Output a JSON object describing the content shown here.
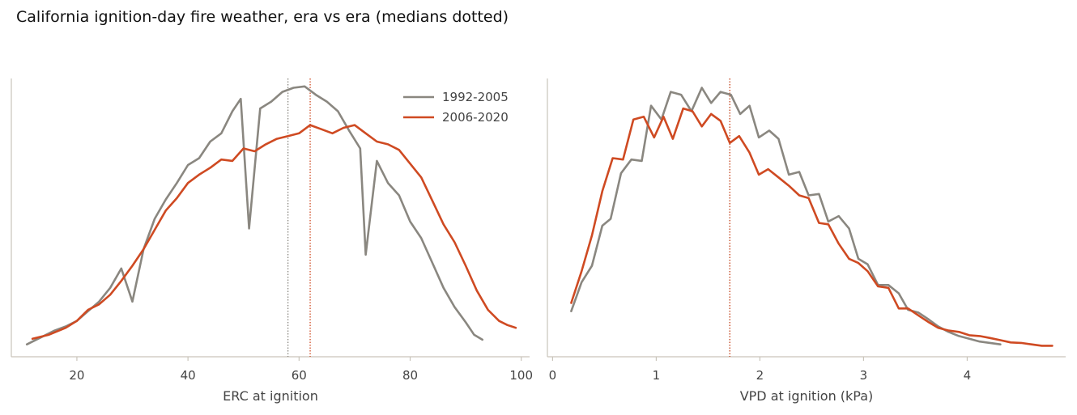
{
  "figure": {
    "title": "California ignition-day fire weather, era vs era (medians dotted)"
  },
  "colors": {
    "era1": "#8a8780",
    "era2": "#cf4a22",
    "axis": "#c9c4ba",
    "text": "#444444"
  },
  "legend": [
    {
      "label": "1992-2005",
      "color": "#8a8780"
    },
    {
      "label": "2006-2020",
      "color": "#cf4a22"
    }
  ],
  "chart_data": [
    {
      "type": "line",
      "xlabel": "ERC at ignition",
      "ylabel": "",
      "xlim": [
        8.2,
        101.5
      ],
      "ylim": [
        0,
        1.0
      ],
      "xticks": [
        20,
        40,
        60,
        80,
        100
      ],
      "y_ticks_shown": false,
      "legend_position": "top-right",
      "medians": [
        {
          "series": "1992-2005",
          "x": 58.0
        },
        {
          "series": "2006-2020",
          "x": 62.0
        }
      ],
      "series": [
        {
          "name": "1992-2005",
          "x": [
            11,
            14,
            16,
            18,
            20,
            22,
            24,
            26,
            28,
            30,
            32,
            34,
            36,
            38,
            40,
            42,
            44,
            46,
            48,
            49.5,
            51,
            53,
            55,
            57,
            59,
            61,
            63,
            65,
            67,
            69,
            71,
            72,
            74,
            76,
            78,
            80,
            82,
            84,
            86,
            88,
            90,
            91.5,
            93
          ],
          "y": [
            0.045,
            0.075,
            0.095,
            0.11,
            0.13,
            0.165,
            0.2,
            0.25,
            0.32,
            0.2,
            0.39,
            0.5,
            0.57,
            0.63,
            0.695,
            0.72,
            0.78,
            0.81,
            0.89,
            0.935,
            0.465,
            0.9,
            0.925,
            0.96,
            0.975,
            0.98,
            0.95,
            0.925,
            0.89,
            0.82,
            0.755,
            0.37,
            0.71,
            0.63,
            0.585,
            0.49,
            0.43,
            0.34,
            0.25,
            0.18,
            0.125,
            0.08,
            0.062
          ]
        },
        {
          "name": "2006-2020",
          "x": [
            12,
            15,
            18,
            20,
            22,
            24,
            26,
            28,
            30,
            32,
            34,
            36,
            38,
            40,
            42,
            44,
            46,
            48,
            50,
            52,
            54,
            56,
            58,
            60,
            62,
            64,
            66,
            68,
            70,
            72,
            74,
            76,
            78,
            80,
            82,
            84,
            86,
            88,
            90,
            92,
            94,
            96,
            97.5,
            99
          ],
          "y": [
            0.065,
            0.08,
            0.105,
            0.13,
            0.17,
            0.19,
            0.225,
            0.275,
            0.33,
            0.39,
            0.46,
            0.53,
            0.575,
            0.63,
            0.66,
            0.685,
            0.715,
            0.71,
            0.755,
            0.745,
            0.77,
            0.79,
            0.8,
            0.81,
            0.84,
            0.825,
            0.81,
            0.83,
            0.84,
            0.81,
            0.78,
            0.77,
            0.75,
            0.7,
            0.65,
            0.565,
            0.48,
            0.415,
            0.33,
            0.24,
            0.17,
            0.13,
            0.115,
            0.105
          ]
        }
      ]
    },
    {
      "type": "line",
      "xlabel": "VPD at ignition (kPa)",
      "ylabel": "",
      "xlim": [
        -0.05,
        4.95
      ],
      "ylim": [
        0,
        1.0
      ],
      "xticks": [
        0,
        1,
        2,
        3,
        4
      ],
      "y_ticks_shown": false,
      "medians": [
        {
          "series": "1992-2005",
          "x": 1.71
        },
        {
          "series": "2006-2020",
          "x": 1.71
        }
      ],
      "series": [
        {
          "name": "1992-2005",
          "x": [
            0.18,
            0.28,
            0.38,
            0.48,
            0.56,
            0.66,
            0.76,
            0.86,
            0.95,
            1.05,
            1.14,
            1.24,
            1.34,
            1.44,
            1.53,
            1.62,
            1.72,
            1.81,
            1.9,
            1.99,
            2.09,
            2.18,
            2.28,
            2.38,
            2.47,
            2.57,
            2.66,
            2.76,
            2.86,
            2.95,
            3.04,
            3.14,
            3.24,
            3.34,
            3.43,
            3.53,
            3.63,
            3.72,
            3.82,
            3.92,
            4.02,
            4.12,
            4.22,
            4.32
          ],
          "y": [
            0.165,
            0.27,
            0.33,
            0.475,
            0.5,
            0.665,
            0.715,
            0.71,
            0.91,
            0.86,
            0.96,
            0.95,
            0.89,
            0.975,
            0.92,
            0.96,
            0.95,
            0.88,
            0.91,
            0.795,
            0.82,
            0.79,
            0.66,
            0.67,
            0.585,
            0.59,
            0.49,
            0.51,
            0.465,
            0.355,
            0.335,
            0.26,
            0.26,
            0.23,
            0.17,
            0.16,
            0.135,
            0.11,
            0.09,
            0.075,
            0.065,
            0.055,
            0.05,
            0.045
          ]
        },
        {
          "name": "2006-2020",
          "x": [
            0.18,
            0.28,
            0.38,
            0.48,
            0.58,
            0.68,
            0.78,
            0.88,
            0.98,
            1.07,
            1.16,
            1.26,
            1.35,
            1.44,
            1.53,
            1.62,
            1.71,
            1.8,
            1.9,
            1.99,
            2.08,
            2.18,
            2.28,
            2.38,
            2.47,
            2.57,
            2.66,
            2.76,
            2.86,
            2.95,
            3.04,
            3.14,
            3.24,
            3.34,
            3.43,
            3.53,
            3.63,
            3.72,
            3.82,
            3.92,
            4.02,
            4.12,
            4.22,
            4.32,
            4.42,
            4.52,
            4.62,
            4.72,
            4.82
          ],
          "y": [
            0.195,
            0.31,
            0.44,
            0.6,
            0.72,
            0.715,
            0.86,
            0.87,
            0.795,
            0.87,
            0.79,
            0.9,
            0.89,
            0.835,
            0.88,
            0.855,
            0.775,
            0.8,
            0.74,
            0.66,
            0.68,
            0.65,
            0.62,
            0.585,
            0.575,
            0.485,
            0.48,
            0.41,
            0.355,
            0.34,
            0.31,
            0.255,
            0.25,
            0.175,
            0.175,
            0.15,
            0.125,
            0.105,
            0.095,
            0.09,
            0.078,
            0.075,
            0.068,
            0.06,
            0.052,
            0.05,
            0.045,
            0.04,
            0.04
          ]
        }
      ]
    }
  ]
}
